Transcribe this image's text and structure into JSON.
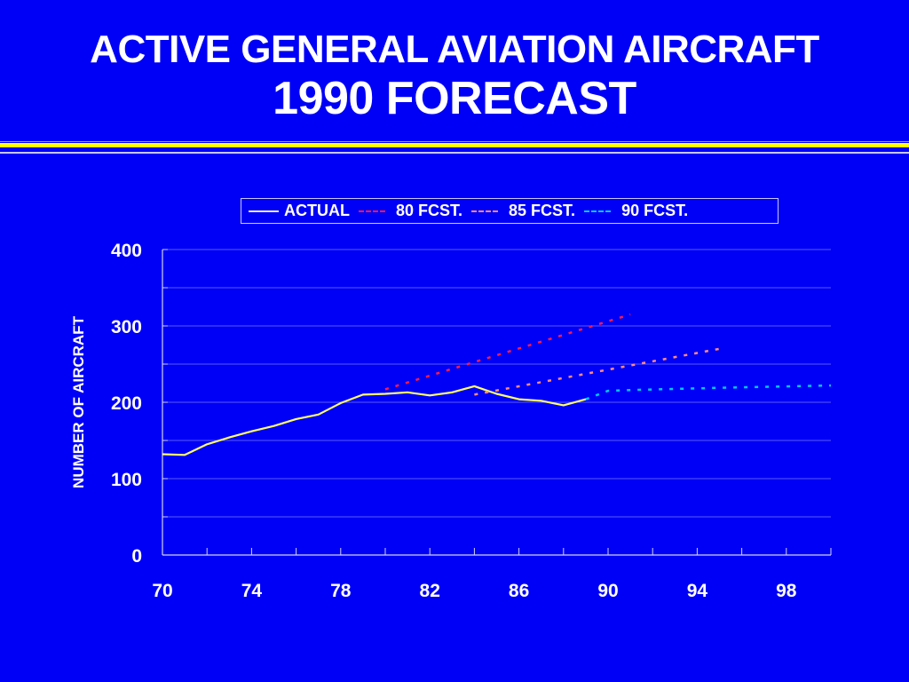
{
  "title": {
    "line1": "ACTIVE GENERAL AVIATION AIRCRAFT",
    "line2": "1990 FORECAST"
  },
  "colors": {
    "background": "#0000f6",
    "rule": "#ffff00",
    "actual": "#ffff66",
    "fcst80": "#ff1a4a",
    "fcst85": "#ff8a80",
    "fcst90": "#00c8ff"
  },
  "chart_data": {
    "type": "line",
    "title": "ACTIVE GENERAL AVIATION AIRCRAFT 1990 FORECAST",
    "xlabel": "",
    "ylabel": "NUMBER OF AIRCRAFT",
    "xlim": [
      70,
      100
    ],
    "ylim": [
      0,
      400
    ],
    "x_ticks": [
      70,
      74,
      78,
      82,
      86,
      90,
      94,
      98
    ],
    "x_minor_step": 2,
    "y_ticks": [
      0,
      100,
      200,
      300,
      400
    ],
    "y_grid_step": 50,
    "grid": true,
    "legend_position": "top",
    "series": [
      {
        "name": "ACTUAL",
        "style": "solid",
        "x": [
          70,
          71,
          72,
          73,
          74,
          75,
          76,
          77,
          78,
          79,
          80,
          81,
          82,
          83,
          84,
          85,
          86,
          87,
          88,
          89
        ],
        "values": [
          132,
          131,
          145,
          154,
          162,
          169,
          178,
          184,
          199,
          210,
          211,
          213,
          209,
          213,
          221,
          211,
          204,
          202,
          196,
          204
        ]
      },
      {
        "name": "80 FCST.",
        "style": "dashed",
        "x": [
          80,
          91
        ],
        "values": [
          217,
          315
        ]
      },
      {
        "name": "85 FCST.",
        "style": "dashed",
        "x": [
          84,
          95
        ],
        "values": [
          210,
          270
        ]
      },
      {
        "name": "90 FCST.",
        "style": "dashed",
        "x": [
          89,
          90,
          91,
          95,
          100
        ],
        "values": [
          204,
          215,
          216,
          219,
          222
        ]
      }
    ]
  }
}
